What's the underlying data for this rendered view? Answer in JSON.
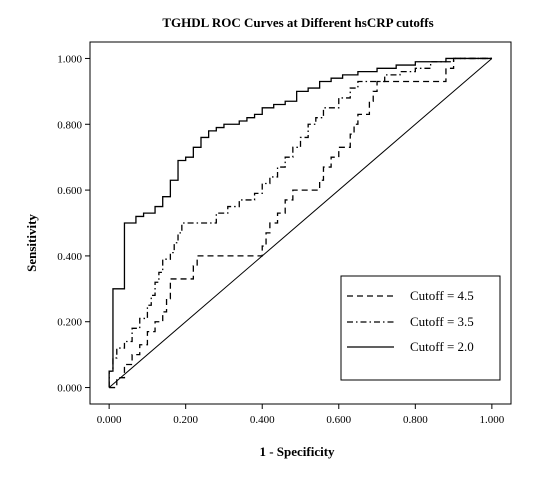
{
  "chart_data": {
    "type": "line",
    "title": "TGHDL ROC Curves at Different hsCRP cutoffs",
    "xlabel": "1 - Specificity",
    "ylabel": "Sensitivity",
    "xlim": [
      -0.05,
      1.05
    ],
    "ylim": [
      -0.05,
      1.05
    ],
    "xticks": [
      "0.000",
      "0.200",
      "0.400",
      "0.600",
      "0.800",
      "1.000"
    ],
    "yticks": [
      "0.000",
      "0.200",
      "0.400",
      "0.600",
      "0.800",
      "1.000"
    ],
    "legend_position": "bottom-right",
    "grid": false,
    "reference_line": [
      [
        0,
        0
      ],
      [
        1,
        1
      ]
    ],
    "series": [
      {
        "name": "Cutoff = 4.5",
        "dash": "dashed",
        "points": [
          [
            0,
            0
          ],
          [
            0.02,
            0
          ],
          [
            0.02,
            0.03
          ],
          [
            0.04,
            0.03
          ],
          [
            0.04,
            0.07
          ],
          [
            0.06,
            0.07
          ],
          [
            0.06,
            0.1
          ],
          [
            0.08,
            0.1
          ],
          [
            0.08,
            0.13
          ],
          [
            0.1,
            0.13
          ],
          [
            0.1,
            0.17
          ],
          [
            0.12,
            0.17
          ],
          [
            0.12,
            0.2
          ],
          [
            0.14,
            0.2
          ],
          [
            0.14,
            0.23
          ],
          [
            0.15,
            0.23
          ],
          [
            0.15,
            0.27
          ],
          [
            0.16,
            0.27
          ],
          [
            0.16,
            0.3
          ],
          [
            0.16,
            0.33
          ],
          [
            0.22,
            0.33
          ],
          [
            0.22,
            0.37
          ],
          [
            0.23,
            0.37
          ],
          [
            0.23,
            0.4
          ],
          [
            0.4,
            0.4
          ],
          [
            0.4,
            0.43
          ],
          [
            0.41,
            0.43
          ],
          [
            0.41,
            0.47
          ],
          [
            0.42,
            0.47
          ],
          [
            0.42,
            0.5
          ],
          [
            0.44,
            0.5
          ],
          [
            0.44,
            0.53
          ],
          [
            0.46,
            0.53
          ],
          [
            0.46,
            0.57
          ],
          [
            0.48,
            0.57
          ],
          [
            0.48,
            0.6
          ],
          [
            0.55,
            0.6
          ],
          [
            0.55,
            0.63
          ],
          [
            0.56,
            0.63
          ],
          [
            0.56,
            0.67
          ],
          [
            0.58,
            0.67
          ],
          [
            0.58,
            0.7
          ],
          [
            0.6,
            0.7
          ],
          [
            0.6,
            0.73
          ],
          [
            0.63,
            0.73
          ],
          [
            0.63,
            0.77
          ],
          [
            0.64,
            0.77
          ],
          [
            0.64,
            0.8
          ],
          [
            0.65,
            0.8
          ],
          [
            0.65,
            0.83
          ],
          [
            0.68,
            0.83
          ],
          [
            0.68,
            0.87
          ],
          [
            0.69,
            0.87
          ],
          [
            0.69,
            0.9
          ],
          [
            0.7,
            0.9
          ],
          [
            0.7,
            0.93
          ],
          [
            0.88,
            0.93
          ],
          [
            0.88,
            0.97
          ],
          [
            0.9,
            0.97
          ],
          [
            0.9,
            1
          ],
          [
            1,
            1
          ]
        ]
      },
      {
        "name": "Cutoff = 3.5",
        "dash": "dash-dot",
        "points": [
          [
            0,
            0
          ],
          [
            0,
            0.05
          ],
          [
            0.01,
            0.05
          ],
          [
            0.01,
            0.09
          ],
          [
            0.02,
            0.09
          ],
          [
            0.02,
            0.12
          ],
          [
            0.04,
            0.12
          ],
          [
            0.04,
            0.14
          ],
          [
            0.06,
            0.14
          ],
          [
            0.06,
            0.18
          ],
          [
            0.08,
            0.18
          ],
          [
            0.08,
            0.21
          ],
          [
            0.1,
            0.21
          ],
          [
            0.1,
            0.25
          ],
          [
            0.11,
            0.25
          ],
          [
            0.11,
            0.28
          ],
          [
            0.12,
            0.28
          ],
          [
            0.12,
            0.32
          ],
          [
            0.13,
            0.32
          ],
          [
            0.13,
            0.35
          ],
          [
            0.14,
            0.35
          ],
          [
            0.14,
            0.39
          ],
          [
            0.16,
            0.39
          ],
          [
            0.16,
            0.41
          ],
          [
            0.17,
            0.41
          ],
          [
            0.17,
            0.44
          ],
          [
            0.18,
            0.44
          ],
          [
            0.18,
            0.47
          ],
          [
            0.19,
            0.47
          ],
          [
            0.19,
            0.5
          ],
          [
            0.28,
            0.5
          ],
          [
            0.28,
            0.53
          ],
          [
            0.31,
            0.53
          ],
          [
            0.31,
            0.55
          ],
          [
            0.34,
            0.55
          ],
          [
            0.34,
            0.57
          ],
          [
            0.38,
            0.57
          ],
          [
            0.38,
            0.59
          ],
          [
            0.4,
            0.59
          ],
          [
            0.4,
            0.62
          ],
          [
            0.42,
            0.62
          ],
          [
            0.42,
            0.64
          ],
          [
            0.44,
            0.64
          ],
          [
            0.44,
            0.67
          ],
          [
            0.46,
            0.67
          ],
          [
            0.46,
            0.7
          ],
          [
            0.48,
            0.7
          ],
          [
            0.48,
            0.73
          ],
          [
            0.5,
            0.73
          ],
          [
            0.5,
            0.76
          ],
          [
            0.52,
            0.76
          ],
          [
            0.52,
            0.8
          ],
          [
            0.54,
            0.8
          ],
          [
            0.54,
            0.82
          ],
          [
            0.56,
            0.82
          ],
          [
            0.56,
            0.85
          ],
          [
            0.6,
            0.85
          ],
          [
            0.6,
            0.88
          ],
          [
            0.63,
            0.88
          ],
          [
            0.63,
            0.91
          ],
          [
            0.65,
            0.91
          ],
          [
            0.65,
            0.93
          ],
          [
            0.72,
            0.93
          ],
          [
            0.72,
            0.95
          ],
          [
            0.76,
            0.95
          ],
          [
            0.76,
            0.96
          ],
          [
            0.8,
            0.96
          ],
          [
            0.8,
            0.97
          ],
          [
            0.84,
            0.97
          ],
          [
            0.84,
            0.99
          ],
          [
            0.9,
            0.99
          ],
          [
            0.9,
            1
          ],
          [
            1,
            1
          ]
        ]
      },
      {
        "name": "Cutoff = 2.0",
        "dash": "solid",
        "points": [
          [
            0,
            0
          ],
          [
            0,
            0.05
          ],
          [
            0.01,
            0.05
          ],
          [
            0.01,
            0.3
          ],
          [
            0.04,
            0.3
          ],
          [
            0.04,
            0.5
          ],
          [
            0.07,
            0.5
          ],
          [
            0.07,
            0.52
          ],
          [
            0.09,
            0.52
          ],
          [
            0.09,
            0.53
          ],
          [
            0.12,
            0.53
          ],
          [
            0.12,
            0.55
          ],
          [
            0.14,
            0.55
          ],
          [
            0.14,
            0.58
          ],
          [
            0.16,
            0.58
          ],
          [
            0.16,
            0.63
          ],
          [
            0.18,
            0.63
          ],
          [
            0.18,
            0.69
          ],
          [
            0.2,
            0.69
          ],
          [
            0.2,
            0.7
          ],
          [
            0.22,
            0.7
          ],
          [
            0.22,
            0.73
          ],
          [
            0.24,
            0.73
          ],
          [
            0.24,
            0.76
          ],
          [
            0.26,
            0.76
          ],
          [
            0.26,
            0.78
          ],
          [
            0.28,
            0.78
          ],
          [
            0.28,
            0.79
          ],
          [
            0.3,
            0.79
          ],
          [
            0.3,
            0.8
          ],
          [
            0.34,
            0.8
          ],
          [
            0.34,
            0.81
          ],
          [
            0.36,
            0.81
          ],
          [
            0.36,
            0.82
          ],
          [
            0.38,
            0.82
          ],
          [
            0.38,
            0.83
          ],
          [
            0.4,
            0.83
          ],
          [
            0.4,
            0.85
          ],
          [
            0.43,
            0.85
          ],
          [
            0.43,
            0.86
          ],
          [
            0.46,
            0.86
          ],
          [
            0.46,
            0.87
          ],
          [
            0.49,
            0.87
          ],
          [
            0.49,
            0.9
          ],
          [
            0.52,
            0.9
          ],
          [
            0.52,
            0.91
          ],
          [
            0.55,
            0.91
          ],
          [
            0.55,
            0.93
          ],
          [
            0.58,
            0.93
          ],
          [
            0.58,
            0.94
          ],
          [
            0.61,
            0.94
          ],
          [
            0.61,
            0.95
          ],
          [
            0.65,
            0.95
          ],
          [
            0.65,
            0.96
          ],
          [
            0.7,
            0.96
          ],
          [
            0.7,
            0.97
          ],
          [
            0.75,
            0.97
          ],
          [
            0.75,
            0.98
          ],
          [
            0.8,
            0.98
          ],
          [
            0.8,
            0.99
          ],
          [
            0.88,
            0.99
          ],
          [
            0.88,
            1
          ],
          [
            1,
            1
          ]
        ]
      }
    ]
  }
}
